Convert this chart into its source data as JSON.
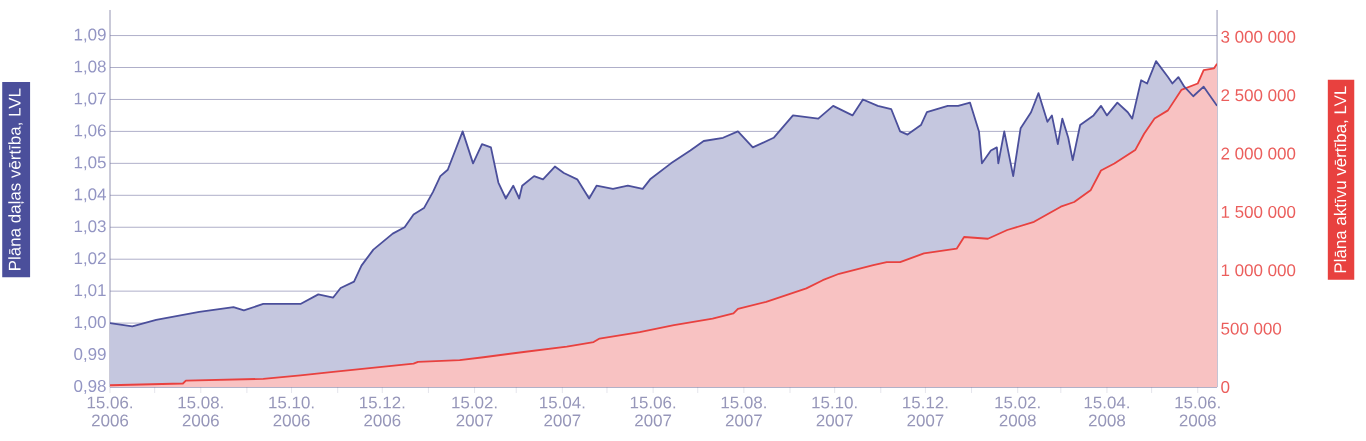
{
  "chart_data": {
    "type": "area",
    "ylabel": "Plāna daļas vērtība, LVL",
    "y2label": "Plāna aktīvu vērtība, LVL",
    "xlim": [
      "2006-06-15",
      "2008-06-28"
    ],
    "xticks": [
      {
        "value": "2006-06-15",
        "label": "15.06. 2006"
      },
      {
        "value": "2006-07-15",
        "label": null
      },
      {
        "value": "2006-08-15",
        "label": "15.08. 2006"
      },
      {
        "value": "2006-09-15",
        "label": null
      },
      {
        "value": "2006-10-15",
        "label": "15.10. 2006"
      },
      {
        "value": "2006-11-15",
        "label": null
      },
      {
        "value": "2006-12-15",
        "label": "15.12. 2006"
      },
      {
        "value": "2007-01-15",
        "label": null
      },
      {
        "value": "2007-02-15",
        "label": "15.02. 2007"
      },
      {
        "value": "2007-03-15",
        "label": null
      },
      {
        "value": "2007-04-15",
        "label": "15.04. 2007"
      },
      {
        "value": "2007-05-15",
        "label": null
      },
      {
        "value": "2007-06-15",
        "label": "15.06. 2007"
      },
      {
        "value": "2007-07-15",
        "label": null
      },
      {
        "value": "2007-08-15",
        "label": "15.08. 2007"
      },
      {
        "value": "2007-09-15",
        "label": null
      },
      {
        "value": "2007-10-15",
        "label": "15.10. 2007"
      },
      {
        "value": "2007-11-15",
        "label": null
      },
      {
        "value": "2007-12-15",
        "label": "15.12. 2007"
      },
      {
        "value": "2008-01-15",
        "label": null
      },
      {
        "value": "2008-02-15",
        "label": "15.02. 2008"
      },
      {
        "value": "2008-03-15",
        "label": null
      },
      {
        "value": "2008-04-15",
        "label": "15.04. 2008"
      },
      {
        "value": "2008-05-15",
        "label": null
      },
      {
        "value": "2008-06-15",
        "label": "15.06. 2008"
      }
    ],
    "ylim": [
      0.98,
      1.098
    ],
    "yticks": [
      {
        "value": 0.98,
        "label": "0,98"
      },
      {
        "value": 0.99,
        "label": "0,99"
      },
      {
        "value": 1.0,
        "label": "1,00"
      },
      {
        "value": 1.01,
        "label": "1,01"
      },
      {
        "value": 1.02,
        "label": "1,02"
      },
      {
        "value": 1.03,
        "label": "1,03"
      },
      {
        "value": 1.04,
        "label": "1,04"
      },
      {
        "value": 1.05,
        "label": "1,05"
      },
      {
        "value": 1.06,
        "label": "1,06"
      },
      {
        "value": 1.07,
        "label": "1,07"
      },
      {
        "value": 1.08,
        "label": "1,08"
      },
      {
        "value": 1.09,
        "label": "1,09"
      }
    ],
    "y2lim": [
      0,
      3230000
    ],
    "y2ticks": [
      0,
      {
        "value": 500000,
        "label": "500 000"
      },
      {
        "value": 1000000,
        "label": "1 000 000"
      },
      {
        "value": 1500000,
        "label": "1 500 000"
      },
      {
        "value": 2000000,
        "label": "2 000 000"
      },
      {
        "value": 2500000,
        "label": "2 500 000"
      },
      {
        "value": 3000000,
        "label": "3 000 000"
      }
    ],
    "grid": "y",
    "series": [
      {
        "color": "#4b4f9b",
        "x": [
          "2006-06-15",
          "2006-06-30",
          "2006-07-16",
          "2006-08-14",
          "2006-09-06",
          "2006-09-13",
          "2006-09-26",
          "2006-10-21",
          "2006-11-02",
          "2006-11-12",
          "2006-11-17",
          "2006-11-26",
          "2006-12-01",
          "2006-12-09",
          "2006-12-22",
          "2006-12-30",
          "2007-01-05",
          "2007-01-12",
          "2007-01-18",
          "2007-01-23",
          "2007-01-28",
          "2007-02-07",
          "2007-02-14",
          "2007-02-20",
          "2007-02-26",
          "2007-03-03",
          "2007-03-08",
          "2007-03-13",
          "2007-03-17",
          "2007-03-19",
          "2007-03-27",
          "2007-04-02",
          "2007-04-10",
          "2007-04-16",
          "2007-04-25",
          "2007-05-03",
          "2007-05-08",
          "2007-05-19",
          "2007-05-29",
          "2007-06-08",
          "2007-06-13",
          "2007-06-27",
          "2007-07-10",
          "2007-07-19",
          "2007-08-01",
          "2007-08-11",
          "2007-08-21",
          "2007-09-04",
          "2007-09-17",
          "2007-10-04",
          "2007-10-14",
          "2007-10-27",
          "2007-11-03",
          "2007-11-13",
          "2007-11-22",
          "2007-11-28",
          "2007-12-03",
          "2007-12-12",
          "2007-12-16",
          "2007-12-30",
          "2008-01-06",
          "2008-01-14",
          "2008-01-20",
          "2008-01-22",
          "2008-01-28",
          "2008-02-01",
          "2008-02-02",
          "2008-02-06",
          "2008-02-12",
          "2008-02-17",
          "2008-02-24",
          "2008-02-29",
          "2008-03-06",
          "2008-03-09",
          "2008-03-13",
          "2008-03-16",
          "2008-03-20",
          "2008-03-23",
          "2008-03-28",
          "2008-04-06",
          "2008-04-11",
          "2008-04-15",
          "2008-04-22",
          "2008-04-29",
          "2008-05-02",
          "2008-05-08",
          "2008-05-12",
          "2008-05-18",
          "2008-05-26",
          "2008-05-29",
          "2008-06-02",
          "2008-06-06",
          "2008-06-12",
          "2008-06-19",
          "2008-06-28"
        ],
        "values": [
          1.0,
          0.999,
          1.001,
          1.0035,
          1.005,
          1.004,
          1.006,
          1.006,
          1.009,
          1.008,
          1.011,
          1.013,
          1.018,
          1.023,
          1.028,
          1.03,
          1.034,
          1.036,
          1.041,
          1.046,
          1.048,
          1.06,
          1.05,
          1.056,
          1.055,
          1.044,
          1.039,
          1.043,
          1.039,
          1.043,
          1.046,
          1.045,
          1.049,
          1.047,
          1.045,
          1.039,
          1.043,
          1.042,
          1.043,
          1.042,
          1.045,
          1.05,
          1.054,
          1.057,
          1.058,
          1.06,
          1.055,
          1.058,
          1.065,
          1.064,
          1.068,
          1.065,
          1.07,
          1.068,
          1.067,
          1.06,
          1.059,
          1.062,
          1.066,
          1.068,
          1.068,
          1.069,
          1.06,
          1.05,
          1.054,
          1.055,
          1.05,
          1.06,
          1.046,
          1.061,
          1.066,
          1.072,
          1.063,
          1.065,
          1.056,
          1.064,
          1.058,
          1.051,
          1.062,
          1.065,
          1.068,
          1.065,
          1.069,
          1.066,
          1.064,
          1.076,
          1.075,
          1.082,
          1.077,
          1.075,
          1.077,
          1.074,
          1.071,
          1.074,
          1.068
        ]
      },
      {
        "color": "#e8413f",
        "axis": "y2",
        "x": [
          "2006-06-15",
          "2006-08-03",
          "2006-08-05",
          "2006-09-26",
          "2006-10-21",
          "2006-11-12",
          "2006-12-13",
          "2007-01-05",
          "2007-01-08",
          "2007-02-05",
          "2007-02-21",
          "2007-03-20",
          "2007-04-18",
          "2007-05-06",
          "2007-05-10",
          "2007-06-06",
          "2007-06-29",
          "2007-07-25",
          "2007-08-08",
          "2007-08-11",
          "2007-08-30",
          "2007-09-26",
          "2007-10-07",
          "2007-10-18",
          "2007-11-10",
          "2007-11-19",
          "2007-11-28",
          "2007-12-14",
          "2008-01-05",
          "2008-01-10",
          "2008-01-26",
          "2008-02-08",
          "2008-02-26",
          "2008-03-15",
          "2008-03-24",
          "2008-04-04",
          "2008-04-11",
          "2008-04-20",
          "2008-05-04",
          "2008-05-10",
          "2008-05-17",
          "2008-05-26",
          "2008-06-04",
          "2008-06-15",
          "2008-06-19",
          "2008-06-26",
          "2008-06-28"
        ],
        "values": [
          15000,
          30000,
          55000,
          70000,
          100000,
          130000,
          170000,
          200000,
          215000,
          230000,
          255000,
          300000,
          345000,
          385000,
          415000,
          470000,
          530000,
          585000,
          630000,
          670000,
          730000,
          845000,
          915000,
          970000,
          1045000,
          1070000,
          1070000,
          1145000,
          1185000,
          1285000,
          1270000,
          1345000,
          1415000,
          1545000,
          1585000,
          1685000,
          1855000,
          1915000,
          2030000,
          2170000,
          2300000,
          2370000,
          2545000,
          2600000,
          2715000,
          2730000,
          2770000
        ]
      }
    ]
  }
}
